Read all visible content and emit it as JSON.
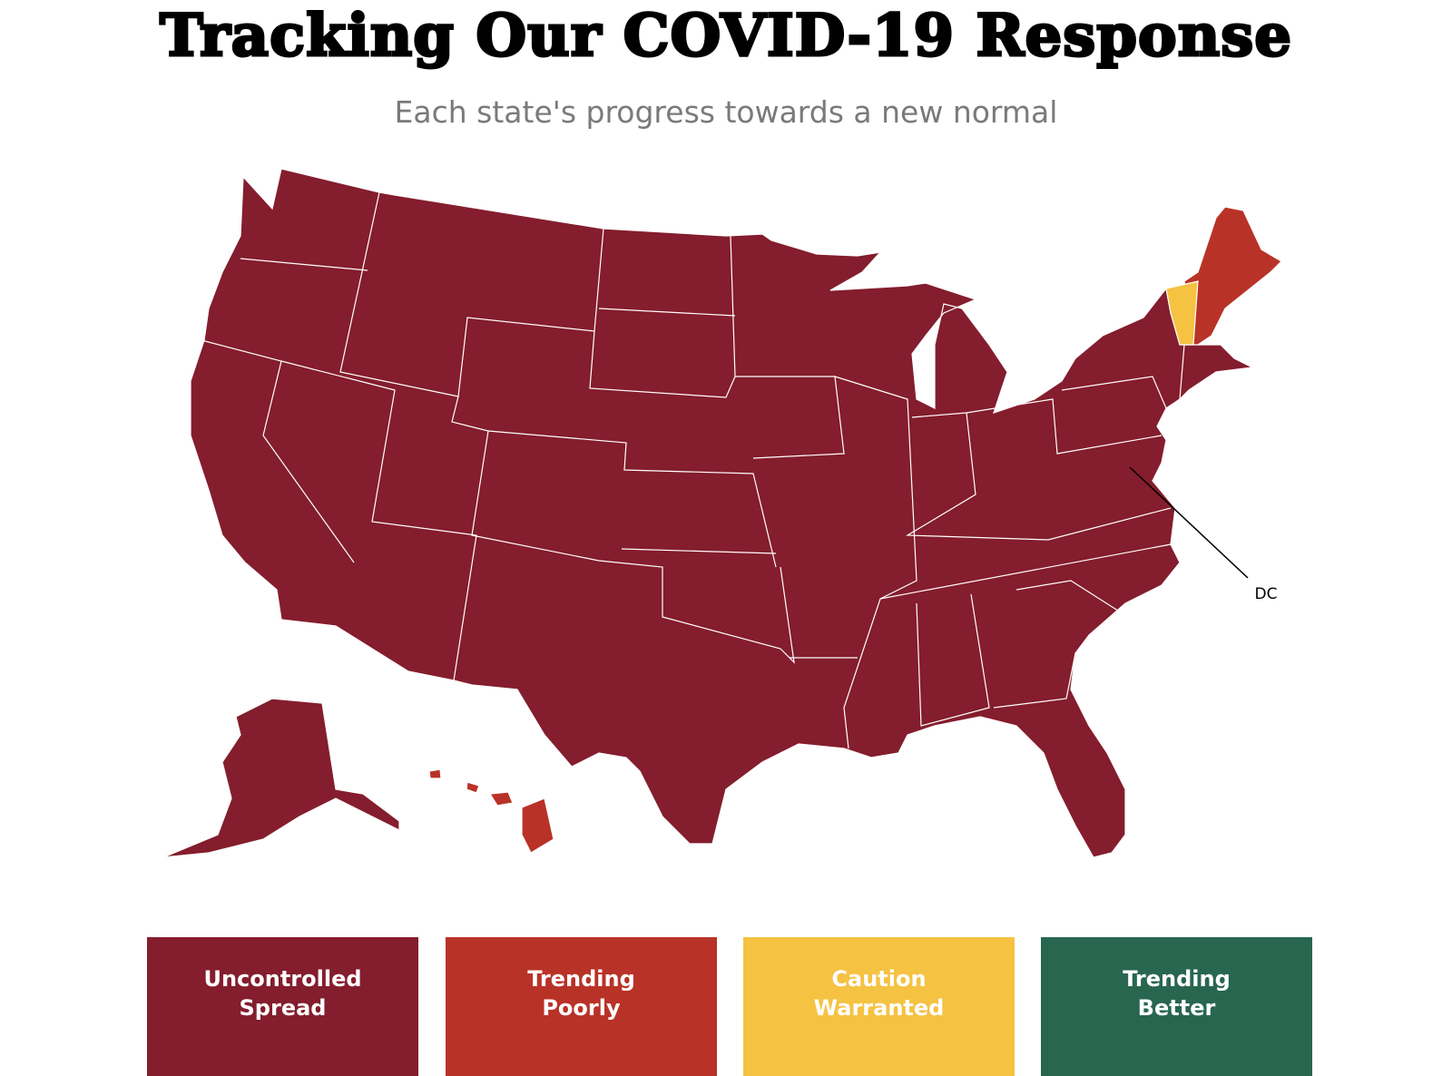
{
  "header": {
    "title": "Tracking Our COVID-19 Response",
    "subtitle": "Each state's progress towards a new normal"
  },
  "map": {
    "annotation": "DC"
  },
  "legend": [
    {
      "label": "Uncontrolled Spread",
      "color": "#841d2d"
    },
    {
      "label": "Trending Poorly",
      "color": "#b93227"
    },
    {
      "label": "Caution Warranted",
      "color": "#f5c242"
    },
    {
      "label": "Trending Better",
      "color": "#286650"
    }
  ]
}
